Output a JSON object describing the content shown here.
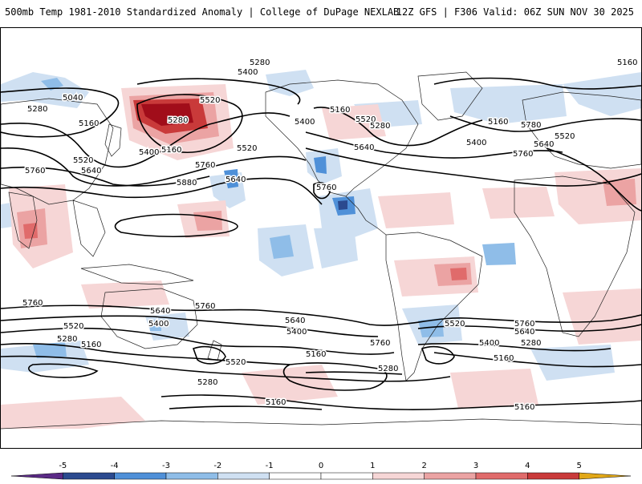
{
  "header": {
    "title": "500mb Temp 1981-2010 Standardized Anomaly | College of DuPage NEXLAB",
    "run_info": "12Z GFS | F306 Valid: 06Z SUN NOV 30 2025"
  },
  "colors": {
    "contour": "#000000",
    "coast": "#222222",
    "anom_neg5": "#5b2a86",
    "anom_neg4": "#2b4a8f",
    "anom_neg3": "#4f90d8",
    "anom_neg2": "#8fbde8",
    "anom_neg1": "#cfe0f2",
    "anom_pos1": "#f6d6d6",
    "anom_pos2": "#eba3a3",
    "anom_pos3": "#e06b6b",
    "anom_pos4": "#c93a3a",
    "anom_pos5": "#a10d1a",
    "anom_pos6": "#e2a817"
  },
  "colorbar": {
    "ticks": [
      "-5",
      "-4",
      "-3",
      "-2",
      "-1",
      "0",
      "1",
      "2",
      "3",
      "4",
      "5"
    ],
    "bins": [
      {
        "from": -6,
        "to": -5,
        "color": "#5b2a86"
      },
      {
        "from": -5,
        "to": -4,
        "color": "#2b4a8f"
      },
      {
        "from": -4,
        "to": -3,
        "color": "#4f90d8"
      },
      {
        "from": -3,
        "to": -2,
        "color": "#8fbde8"
      },
      {
        "from": -2,
        "to": -1,
        "color": "#cfe0f2"
      },
      {
        "from": -1,
        "to": 0,
        "color": "#ffffff"
      },
      {
        "from": 0,
        "to": 1,
        "color": "#ffffff"
      },
      {
        "from": 1,
        "to": 2,
        "color": "#f6d6d6"
      },
      {
        "from": 2,
        "to": 3,
        "color": "#eba3a3"
      },
      {
        "from": 3,
        "to": 4,
        "color": "#e06b6b"
      },
      {
        "from": 4,
        "to": 5,
        "color": "#c93a3a"
      },
      {
        "from": 5,
        "to": 6,
        "color": "#a10d1a"
      }
    ]
  },
  "contour_labels": {
    "c5280_top": "5280",
    "c5400_top": "5400",
    "c5160_topright": "5160",
    "c5040": "5040",
    "c5280_left": "5280",
    "c5160_left": "5160",
    "c5520_alaska": "5520",
    "c5280_alaska": "5280",
    "c5160_bc": "5160",
    "c5400_pacific": "5400",
    "c5520_left": "5520",
    "c5640_left": "5640",
    "c5520_pacific": "5520",
    "c5760_left": "5760",
    "c5760_pacific": "5760",
    "c5640_pacific": "5640",
    "c5880": "5880",
    "c5400_us": "5400",
    "c5160_canada": "5160",
    "c5280_us": "5280",
    "c5520_us": "5520",
    "c5640_us": "5640",
    "c5760_gulf": "5760",
    "c5160_greenland": "5160",
    "c5400_atl": "5400",
    "c5780_atl": "5780",
    "c5760_atl": "5760",
    "c5640_eu": "5640",
    "c5520_eu": "5520",
    "c5760_s_left": "5760",
    "c5640_s": "5640",
    "c5760_s_mid": "5760",
    "c5520_s_left": "5520",
    "c5400_s_left": "5400",
    "c5280_s_left": "5280",
    "c5160_s_left": "5160",
    "c5640_s_pac": "5640",
    "c5400_s_pac": "5400",
    "c5520_s_pac": "5520",
    "c5280_s_pac": "5280",
    "c5160_s_pac": "5160",
    "c5760_s_samer": "5760",
    "c5280_s_samer": "5280",
    "c5520_s_atl": "5520",
    "c5400_s_atl": "5400",
    "c5760_s_right": "5760",
    "c5640_s_right": "5640",
    "c5160_s_right": "5160",
    "c5280_s_right": "5280",
    "c5160_bottom_mid": "5160",
    "c5160_bottom_right": "5160"
  }
}
